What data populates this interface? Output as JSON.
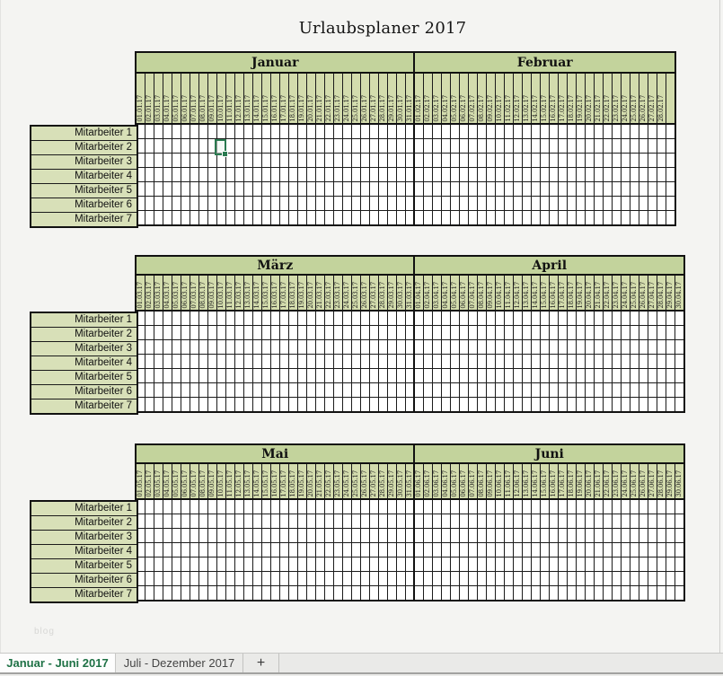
{
  "title": "Urlaubsplaner 2017",
  "watermark": "blog",
  "employees": [
    "Mitarbeiter 1",
    "Mitarbeiter 2",
    "Mitarbeiter 3",
    "Mitarbeiter 4",
    "Mitarbeiter 5",
    "Mitarbeiter 6",
    "Mitarbeiter 7"
  ],
  "calendar_blocks": [
    {
      "months": [
        {
          "name": "Januar",
          "trailing_blank_columns": 0,
          "dates": [
            "01.01.17",
            "02.01.17",
            "03.01.17",
            "04.01.17",
            "05.01.17",
            "06.01.17",
            "07.01.17",
            "08.01.17",
            "09.01.17",
            "10.01.17",
            "11.01.17",
            "12.01.17",
            "13.01.17",
            "14.01.17",
            "15.01.17",
            "16.01.17",
            "17.01.17",
            "18.01.17",
            "19.01.17",
            "20.01.17",
            "21.01.17",
            "22.01.17",
            "23.01.17",
            "24.01.17",
            "25.01.17",
            "26.01.17",
            "27.01.17",
            "28.01.17",
            "29.01.17",
            "30.01.17",
            "31.01.17"
          ]
        },
        {
          "name": "Februar",
          "trailing_blank_columns": 1,
          "dates": [
            "01.02.17",
            "02.02.17",
            "03.02.17",
            "04.02.17",
            "05.02.17",
            "06.02.17",
            "07.02.17",
            "08.02.17",
            "09.02.17",
            "10.02.17",
            "11.02.17",
            "12.02.17",
            "13.02.17",
            "14.02.17",
            "15.02.17",
            "16.02.17",
            "17.02.17",
            "18.02.17",
            "19.02.17",
            "20.02.17",
            "21.02.17",
            "22.02.17",
            "23.02.17",
            "24.02.17",
            "25.02.17",
            "26.02.17",
            "27.02.17",
            "28.02.17"
          ]
        }
      ]
    },
    {
      "months": [
        {
          "name": "März",
          "trailing_blank_columns": 0,
          "dates": [
            "01.03.17",
            "02.03.17",
            "03.03.17",
            "04.03.17",
            "05.03.17",
            "06.03.17",
            "07.03.17",
            "08.03.17",
            "09.03.17",
            "10.03.17",
            "11.03.17",
            "12.03.17",
            "13.03.17",
            "14.03.17",
            "15.03.17",
            "16.03.17",
            "17.03.17",
            "18.03.17",
            "19.03.17",
            "20.03.17",
            "21.03.17",
            "22.03.17",
            "23.03.17",
            "24.03.17",
            "25.03.17",
            "26.03.17",
            "27.03.17",
            "28.03.17",
            "29.03.17",
            "30.03.17",
            "31.03.17"
          ]
        },
        {
          "name": "April",
          "trailing_blank_columns": 0,
          "dates": [
            "01.04.17",
            "02.04.17",
            "03.04.17",
            "04.04.17",
            "05.04.17",
            "06.04.17",
            "07.04.17",
            "08.04.17",
            "09.04.17",
            "10.04.17",
            "11.04.17",
            "12.04.17",
            "13.04.17",
            "14.04.17",
            "15.04.17",
            "16.04.17",
            "17.04.17",
            "18.04.17",
            "19.04.17",
            "20.04.17",
            "21.04.17",
            "22.04.17",
            "23.04.17",
            "24.04.17",
            "25.04.17",
            "26.04.17",
            "27.04.17",
            "28.04.17",
            "29.04.17",
            "30.04.17"
          ]
        }
      ]
    },
    {
      "months": [
        {
          "name": "Mai",
          "trailing_blank_columns": 0,
          "dates": [
            "01.05.17",
            "02.05.17",
            "03.05.17",
            "04.05.17",
            "05.05.17",
            "06.05.17",
            "07.05.17",
            "08.05.17",
            "09.05.17",
            "10.05.17",
            "11.05.17",
            "12.05.17",
            "13.05.17",
            "14.05.17",
            "15.05.17",
            "16.05.17",
            "17.05.17",
            "18.05.17",
            "19.05.17",
            "20.05.17",
            "21.05.17",
            "22.05.17",
            "23.05.17",
            "24.05.17",
            "25.05.17",
            "26.05.17",
            "27.05.17",
            "28.05.17",
            "29.05.17",
            "30.05.17",
            "31.05.17"
          ]
        },
        {
          "name": "Juni",
          "trailing_blank_columns": 0,
          "dates": [
            "01.06.17",
            "02.06.17",
            "03.06.17",
            "04.06.17",
            "05.06.17",
            "06.06.17",
            "07.06.17",
            "08.06.17",
            "09.06.17",
            "10.06.17",
            "11.06.17",
            "12.06.17",
            "13.06.17",
            "14.06.17",
            "15.06.17",
            "16.06.17",
            "17.06.17",
            "18.06.17",
            "19.06.17",
            "20.06.17",
            "21.06.17",
            "22.06.17",
            "23.06.17",
            "24.06.17",
            "25.06.17",
            "26.06.17",
            "27.06.17",
            "28.06.17",
            "29.06.17",
            "30.06.17"
          ]
        }
      ]
    }
  ],
  "selection": {
    "employee": "Mitarbeiter 2",
    "date": "10.01.17",
    "block_index": 0,
    "row_index": 2,
    "column_index": 10
  },
  "sheet_tabs": [
    {
      "label": "Januar - Juni 2017",
      "active": true
    },
    {
      "label": "Juli - Dezember 2017",
      "active": false
    }
  ],
  "add_sheet_label": "+",
  "colors": {
    "month_header": "#c3d39c",
    "day_header": "#d3dcad",
    "label_cell": "#d8e0b8",
    "selection_green": "#2a7a50",
    "active_tab_text": "#1e7145"
  }
}
